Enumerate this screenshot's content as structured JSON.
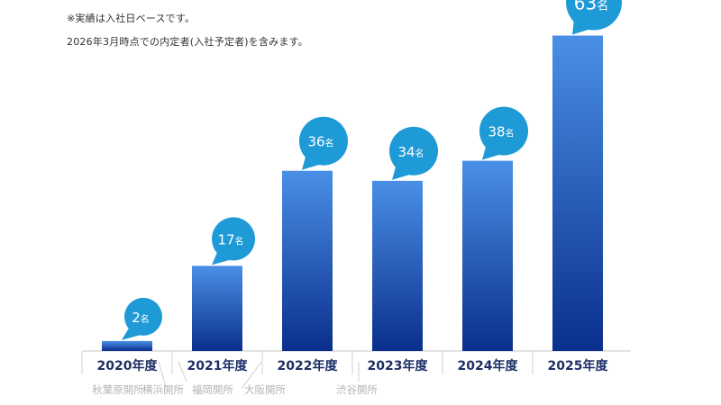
{
  "notes": {
    "line1": "※実績は入社日ベースです。",
    "line2": "2026年3月時点での内定者(入社予定者)を含みます。"
  },
  "colors": {
    "bar_top": "#4a8fe6",
    "bar_bottom": "#0a2f8c",
    "bubble": "#1e9ad6",
    "axis_label": "#1d2f66",
    "office_label": "#b4b4b4"
  },
  "chart_data": {
    "type": "bar",
    "title": "",
    "xlabel": "",
    "ylabel": "",
    "grid": false,
    "legend": "none",
    "ylim": [
      0,
      70
    ],
    "categories": [
      "2020年度",
      "2021年度",
      "2022年度",
      "2023年度",
      "2024年度",
      "2025年度"
    ],
    "values": [
      2,
      17,
      36,
      34,
      38,
      63
    ],
    "value_suffix": "名",
    "annotations": [
      {
        "text": "秋葉原開所",
        "category": "2020年度"
      },
      {
        "text": "横浜開所",
        "category": "2020年度"
      },
      {
        "text": "福岡開所",
        "category": "2021年度"
      },
      {
        "text": "大阪開所",
        "category": "2021年度"
      },
      {
        "text": "渋谷開所",
        "category": "2022年度"
      }
    ]
  }
}
